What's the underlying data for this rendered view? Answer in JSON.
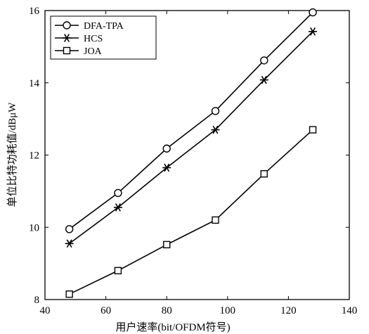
{
  "chart_data": {
    "type": "line",
    "title": "",
    "xlabel": "用户速率(bit/OFDM符号)",
    "ylabel": "单位比特功耗值/dBμW",
    "xlim": [
      40,
      140
    ],
    "ylim": [
      8,
      16
    ],
    "xticks": [
      "40",
      "60",
      "80",
      "100",
      "120",
      "140"
    ],
    "yticks": [
      "8",
      "10",
      "12",
      "14",
      "16"
    ],
    "grid": false,
    "legend_position": "top-left",
    "x": [
      48,
      64,
      80,
      96,
      112,
      128
    ],
    "series": [
      {
        "name": "DFA-TPA",
        "marker": "circle",
        "values": [
          9.95,
          10.95,
          12.18,
          13.22,
          14.62,
          15.95
        ]
      },
      {
        "name": "HCS",
        "marker": "asterisk",
        "values": [
          9.55,
          10.55,
          11.65,
          12.7,
          14.08,
          15.42
        ]
      },
      {
        "name": "JOA",
        "marker": "square",
        "values": [
          8.15,
          8.8,
          9.52,
          10.2,
          11.48,
          12.7
        ]
      }
    ]
  }
}
